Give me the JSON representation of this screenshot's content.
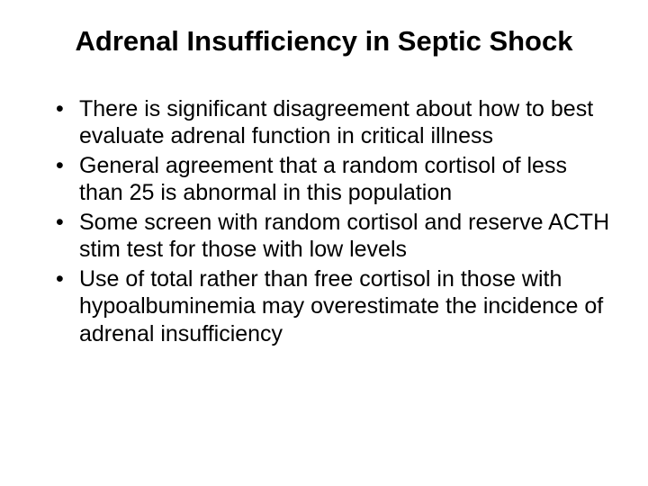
{
  "slide": {
    "title": "Adrenal Insufficiency in Septic Shock",
    "title_fontsize": 31,
    "bullet_fontsize": 25,
    "text_color": "#000000",
    "background_color": "#ffffff",
    "bullets": [
      "There is significant disagreement about how to best evaluate adrenal function in critical illness",
      "General agreement that a random cortisol of less than 25 is abnormal in this population",
      "Some screen with random cortisol and reserve ACTH stim test for those with low levels",
      "Use of total rather than free cortisol in those with hypoalbuminemia may overestimate the incidence of adrenal insufficiency"
    ]
  }
}
